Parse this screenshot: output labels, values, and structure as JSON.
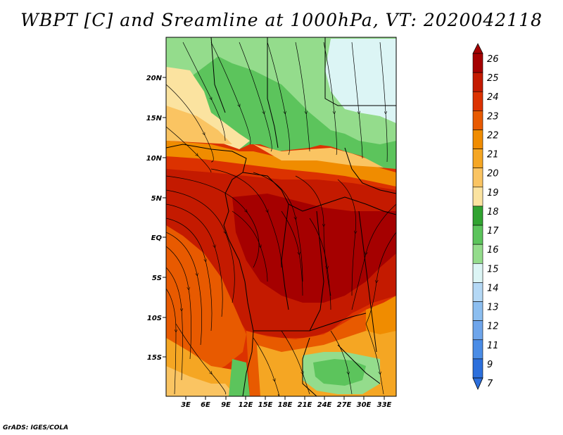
{
  "title": "WBPT [C] and Sreamline at 1000hPa, VT: 2020042118",
  "credit": "GrADS: IGES/COLA",
  "map": {
    "lat_labels": [
      "20N",
      "15N",
      "10N",
      "5N",
      "EQ",
      "5S",
      "10S",
      "15S"
    ],
    "lon_labels": [
      "3E",
      "6E",
      "9E",
      "12E",
      "15E",
      "18E",
      "21E",
      "24E",
      "27E",
      "30E",
      "33E"
    ]
  },
  "colorbar": {
    "labels": [
      "26",
      "25",
      "24",
      "23",
      "22",
      "21",
      "20",
      "19",
      "18",
      "17",
      "16",
      "15",
      "14",
      "13",
      "12",
      "11",
      "9",
      "7"
    ],
    "colors": [
      "#a50000",
      "#c41a00",
      "#dc3200",
      "#e85a00",
      "#f08c00",
      "#f5a623",
      "#fac462",
      "#fbe3a0",
      "#31a331",
      "#5cc45c",
      "#94dc8c",
      "#dcf5f5",
      "#b4d8f5",
      "#8cbef0",
      "#6ea5eb",
      "#4a8ce6",
      "#2c6fdc"
    ]
  }
}
